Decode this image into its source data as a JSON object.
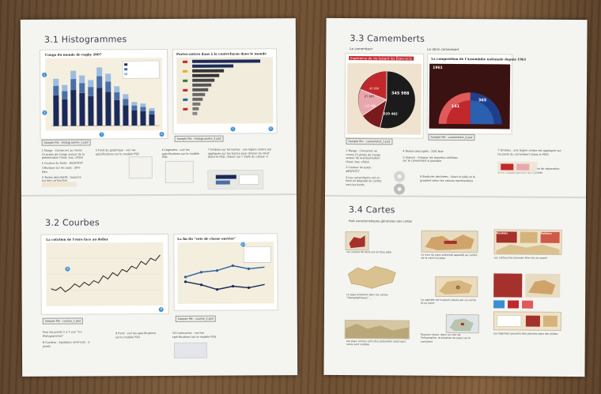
{
  "left_spread": {
    "histogrammes": {
      "title": "3.1 Histogrammes",
      "chart1_title": "Congo du monde de rugby 2007",
      "chart2_title": "Portes-autres dans à la contrefaçon dans le monde",
      "sample1": "Sample file : histogramme_1.psd",
      "sample2": "Sample file : histogramme_2.psd",
      "notes_left": [
        "1 Marge : Conserver au moins 15 pixels de marge autour de la présentation (haut, bas, côtés)",
        "2 Couleur du texte : #E5F5F5T",
        "3 Bordure sur les axes : 20% bleu",
        "4 Textes descriptifs : toujours sur des cartouches"
      ],
      "note_mid": "5 Fond du graphique : voir les spécifications sur le modèle PSD",
      "note_right": "6 Légendes : voir les spécifications sur le modèle PSD",
      "note_far": "7 Ombres sur les barres : une légère ombre est appliquée sur les barres pour donner du relief (dans le PSD, cliquer sur « Style du calque »)"
    },
    "courbes": {
      "title": "3.2 Courbes",
      "chart1_title": "La cotation de l'euro face au dollar",
      "chart2_title": "La fin du \"vote de classe ouvrier\"",
      "sample1": "Sample file : courbe_1.psd",
      "sample2": "Sample file : courbe_2.psd",
      "notes": [
        "Pour les points 1 à 7 voir \"3.1 Histogrammes\"",
        "8 Courbes : épaisseur minimum : 2 pixels",
        "9 Fond : voir les spécifications sur le modèle PSD",
        "10 Cartouches : voir les spécifications sur le modèle PSD"
      ]
    }
  },
  "right_spread": {
    "camemberts": {
      "title": "3.3 Camemberts",
      "sub1": "Le camembert",
      "sub2": "Le demi camembert",
      "chart1_title": "Espérance de vie faisant les États-Unis",
      "chart2_title": "La composition de l'Assemblée nationale depuis 1961",
      "chart2_year": "1961",
      "pie_values": [
        "345 988",
        "529 482",
        "116 698",
        "43 950",
        "67 883"
      ],
      "semi_values": [
        "141",
        "365"
      ],
      "sample1": "Sample file : camembert_1.psd",
      "sample2": "Sample file : camembert_2.psd",
      "notes": [
        "1 Marge : Conserver au moins 15 pixels de marge autour de la présentation (haut, bas, côtés)",
        "2 Couleur du texte : #E5F5F5T",
        "3 Les camemberts ont un fond en dégradé du centre vers les bords",
        "4 Textes descriptifs : 20% Noir",
        "5 Valeurs : intégrer les données chiffrées sur le camembert si possible",
        "6 Bordures déclinées : lisser la taille et le gradient selon les valeurs représentées",
        "7 Ombres : une légère ombre est appliquée sur les parts du camembert (dans le PSD)",
        "8 Séparation : ajouter une ligne de séparation entre chaque portion, de 2 points"
      ]
    },
    "cartes": {
      "title": "3.4 Cartes",
      "subtitle": "Huit caractéristiques générales des cartes",
      "caps": [
        "La couleur de fond est un bleu pâle",
        "Le pays présenté dans les cartes \"topographiques\" ...",
        "Les pays voisins sont plus présentés mais leurs noms sont visibles",
        "Le nom du pays présenté apparaît au centre de la carte du pays",
        "La capitale est toujours située par un cercle et un point",
        "Toujours situer, dans un coin de l'infographie, la situation du pays sur le continent",
        "Les cartouches peuvent être mis en avant",
        "Les légendes peuvent être placées dans des boîtes"
      ],
      "map_labels": [
        "Roubaix",
        "Poitiers"
      ]
    }
  },
  "colors": {
    "accent_blue": "#2b7fc0",
    "bar_dark": "#1a2a5a",
    "pie_red": "#c0282c",
    "pie_pink": "#e9a7ad",
    "map_tan": "#d9c28f"
  }
}
